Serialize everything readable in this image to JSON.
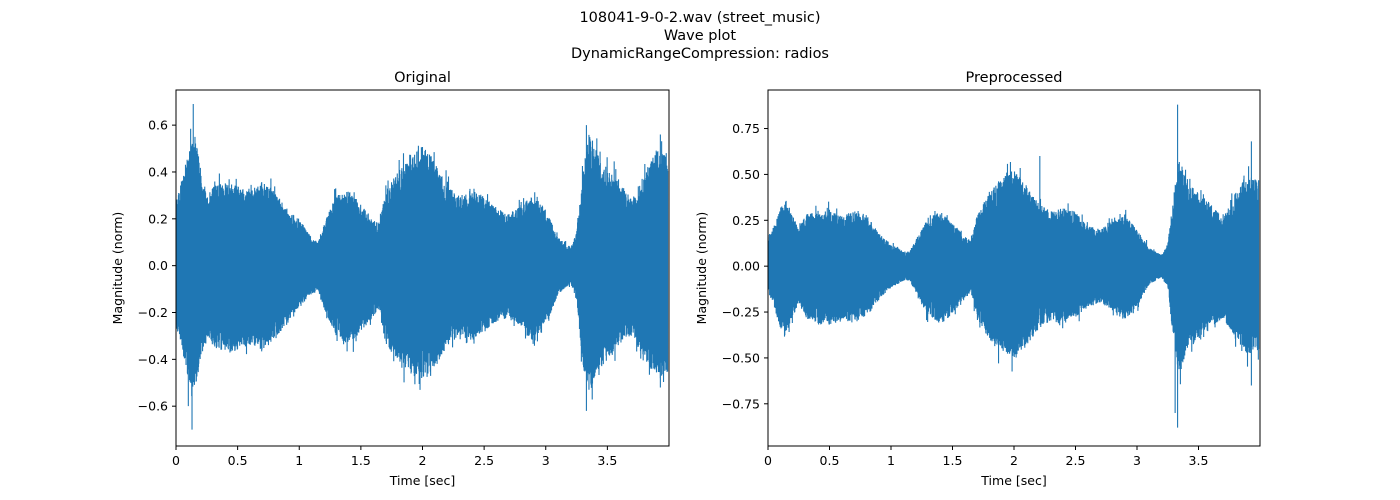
{
  "figure": {
    "title_lines": [
      "108041-9-0-2.wav (street_music)",
      "Wave plot",
      "DynamicRangeCompression: radios"
    ],
    "waveform_color": "#1f77b4"
  },
  "chart_data": [
    {
      "type": "line",
      "title": "Original",
      "xlabel": "Time [sec]",
      "ylabel": "Magnitude (norm)",
      "xlim": [
        0,
        4.0
      ],
      "ylim": [
        -0.77,
        0.75
      ],
      "xticks": [
        0,
        0.5,
        1,
        1.5,
        2,
        2.5,
        3,
        3.5
      ],
      "xtick_labels": [
        "0",
        "0.5",
        "1",
        "1.5",
        "2",
        "2.5",
        "3",
        "3.5"
      ],
      "yticks": [
        0.6,
        0.4,
        0.2,
        0.0,
        -0.2,
        -0.4,
        -0.6
      ],
      "ytick_labels": [
        "0.6",
        "0.4",
        "0.2",
        "0.0",
        "−0.2",
        "−0.4",
        "−0.6"
      ],
      "envelope": {
        "t": [
          0.0,
          0.05,
          0.1,
          0.15,
          0.2,
          0.25,
          0.3,
          0.4,
          0.5,
          0.6,
          0.7,
          0.8,
          0.9,
          1.0,
          1.1,
          1.15,
          1.2,
          1.3,
          1.4,
          1.5,
          1.6,
          1.65,
          1.7,
          1.8,
          1.9,
          2.0,
          2.1,
          2.2,
          2.3,
          2.4,
          2.5,
          2.6,
          2.7,
          2.8,
          2.9,
          3.0,
          3.1,
          3.2,
          3.25,
          3.3,
          3.35,
          3.4,
          3.5,
          3.6,
          3.7,
          3.8,
          3.9,
          3.99
        ],
        "upper": [
          0.28,
          0.38,
          0.48,
          0.56,
          0.42,
          0.3,
          0.34,
          0.36,
          0.34,
          0.32,
          0.36,
          0.32,
          0.24,
          0.2,
          0.12,
          0.1,
          0.18,
          0.3,
          0.32,
          0.26,
          0.2,
          0.18,
          0.32,
          0.4,
          0.46,
          0.52,
          0.44,
          0.34,
          0.3,
          0.32,
          0.3,
          0.24,
          0.22,
          0.26,
          0.3,
          0.24,
          0.12,
          0.08,
          0.14,
          0.4,
          0.56,
          0.5,
          0.42,
          0.36,
          0.28,
          0.4,
          0.5,
          0.46
        ],
        "lower": [
          -0.26,
          -0.36,
          -0.48,
          -0.56,
          -0.4,
          -0.3,
          -0.34,
          -0.38,
          -0.36,
          -0.34,
          -0.36,
          -0.32,
          -0.24,
          -0.18,
          -0.12,
          -0.1,
          -0.18,
          -0.3,
          -0.34,
          -0.28,
          -0.22,
          -0.18,
          -0.34,
          -0.4,
          -0.46,
          -0.5,
          -0.44,
          -0.34,
          -0.3,
          -0.32,
          -0.28,
          -0.24,
          -0.22,
          -0.26,
          -0.34,
          -0.26,
          -0.12,
          -0.08,
          -0.14,
          -0.42,
          -0.56,
          -0.48,
          -0.4,
          -0.34,
          -0.3,
          -0.4,
          -0.48,
          -0.46
        ]
      },
      "peaks": [
        {
          "t": 0.14,
          "y": 0.69
        },
        {
          "t": 0.13,
          "y": -0.7
        },
        {
          "t": 0.1,
          "y": -0.6
        },
        {
          "t": 3.33,
          "y": 0.6
        },
        {
          "t": 3.33,
          "y": -0.62
        },
        {
          "t": 3.93,
          "y": 0.56
        },
        {
          "t": 3.93,
          "y": -0.52
        }
      ]
    },
    {
      "type": "line",
      "title": "Preprocessed",
      "xlabel": "Time [sec]",
      "ylabel": "Magnitude (norm)",
      "xlim": [
        0,
        4.0
      ],
      "ylim": [
        -0.98,
        0.96
      ],
      "xticks": [
        0,
        0.5,
        1,
        1.5,
        2,
        2.5,
        3,
        3.5
      ],
      "xtick_labels": [
        "0",
        "0.5",
        "1",
        "1.5",
        "2",
        "2.5",
        "3",
        "3.5"
      ],
      "yticks": [
        0.75,
        0.5,
        0.25,
        0.0,
        -0.25,
        -0.5,
        -0.75
      ],
      "ytick_labels": [
        "0.75",
        "0.50",
        "0.25",
        "0.00",
        "−0.25",
        "−0.50",
        "−0.75"
      ],
      "envelope": {
        "t": [
          0.0,
          0.05,
          0.1,
          0.15,
          0.2,
          0.25,
          0.3,
          0.4,
          0.5,
          0.6,
          0.7,
          0.8,
          0.9,
          1.0,
          1.1,
          1.15,
          1.2,
          1.3,
          1.4,
          1.5,
          1.6,
          1.65,
          1.7,
          1.8,
          1.9,
          2.0,
          2.1,
          2.2,
          2.3,
          2.4,
          2.5,
          2.6,
          2.7,
          2.8,
          2.9,
          3.0,
          3.1,
          3.2,
          3.25,
          3.3,
          3.35,
          3.4,
          3.5,
          3.6,
          3.7,
          3.8,
          3.9,
          3.99
        ],
        "upper": [
          0.16,
          0.22,
          0.32,
          0.36,
          0.28,
          0.2,
          0.28,
          0.3,
          0.3,
          0.28,
          0.3,
          0.28,
          0.18,
          0.12,
          0.08,
          0.08,
          0.14,
          0.26,
          0.3,
          0.24,
          0.16,
          0.14,
          0.28,
          0.4,
          0.48,
          0.52,
          0.44,
          0.34,
          0.3,
          0.32,
          0.3,
          0.22,
          0.2,
          0.24,
          0.28,
          0.2,
          0.1,
          0.06,
          0.12,
          0.4,
          0.6,
          0.46,
          0.4,
          0.34,
          0.26,
          0.4,
          0.5,
          0.46
        ],
        "lower": [
          -0.14,
          -0.22,
          -0.34,
          -0.36,
          -0.28,
          -0.2,
          -0.28,
          -0.32,
          -0.32,
          -0.3,
          -0.3,
          -0.28,
          -0.18,
          -0.12,
          -0.08,
          -0.08,
          -0.14,
          -0.26,
          -0.32,
          -0.26,
          -0.18,
          -0.14,
          -0.3,
          -0.4,
          -0.46,
          -0.5,
          -0.44,
          -0.34,
          -0.3,
          -0.32,
          -0.28,
          -0.22,
          -0.2,
          -0.24,
          -0.3,
          -0.22,
          -0.1,
          -0.06,
          -0.12,
          -0.42,
          -0.6,
          -0.46,
          -0.4,
          -0.34,
          -0.28,
          -0.4,
          -0.48,
          -0.46
        ]
      },
      "peaks": [
        {
          "t": 3.33,
          "y": 0.88
        },
        {
          "t": 3.33,
          "y": -0.88
        },
        {
          "t": 3.31,
          "y": -0.8
        },
        {
          "t": 2.21,
          "y": 0.6
        },
        {
          "t": 3.93,
          "y": 0.68
        },
        {
          "t": 3.93,
          "y": -0.65
        }
      ]
    }
  ]
}
